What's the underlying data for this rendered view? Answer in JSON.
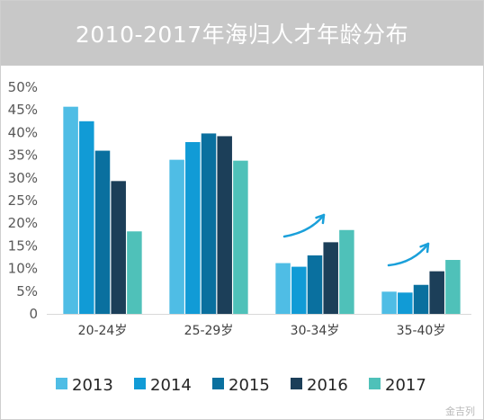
{
  "colors": {
    "title_bg": "#c8c8c8",
    "series": [
      "#4fbde5",
      "#119bd6",
      "#0a709f",
      "#1c3f59",
      "#4fc1b9"
    ],
    "trend_arrow": "#1aa0da"
  },
  "watermark": {
    "text": "金吉列"
  },
  "chart_data": {
    "type": "bar",
    "title": "2010-2017年海归人才年龄分布",
    "categories": [
      "20-24岁",
      "25-29岁",
      "30-34岁",
      "35-40岁"
    ],
    "series": [
      {
        "name": "2013",
        "values": [
          45.7,
          34.0,
          11.2,
          4.9
        ]
      },
      {
        "name": "2014",
        "values": [
          42.5,
          37.9,
          10.4,
          4.7
        ]
      },
      {
        "name": "2015",
        "values": [
          36.0,
          39.8,
          12.9,
          6.4
        ]
      },
      {
        "name": "2016",
        "values": [
          29.3,
          39.2,
          15.8,
          9.4
        ]
      },
      {
        "name": "2017",
        "values": [
          18.2,
          33.8,
          18.5,
          11.9
        ]
      }
    ],
    "ylim": [
      0,
      50
    ],
    "yticks": [
      "0",
      "5%",
      "10%",
      "15%",
      "20%",
      "25%",
      "30%",
      "35%",
      "40%",
      "45%",
      "50%"
    ],
    "legend_position": "bottom",
    "grid": false
  }
}
